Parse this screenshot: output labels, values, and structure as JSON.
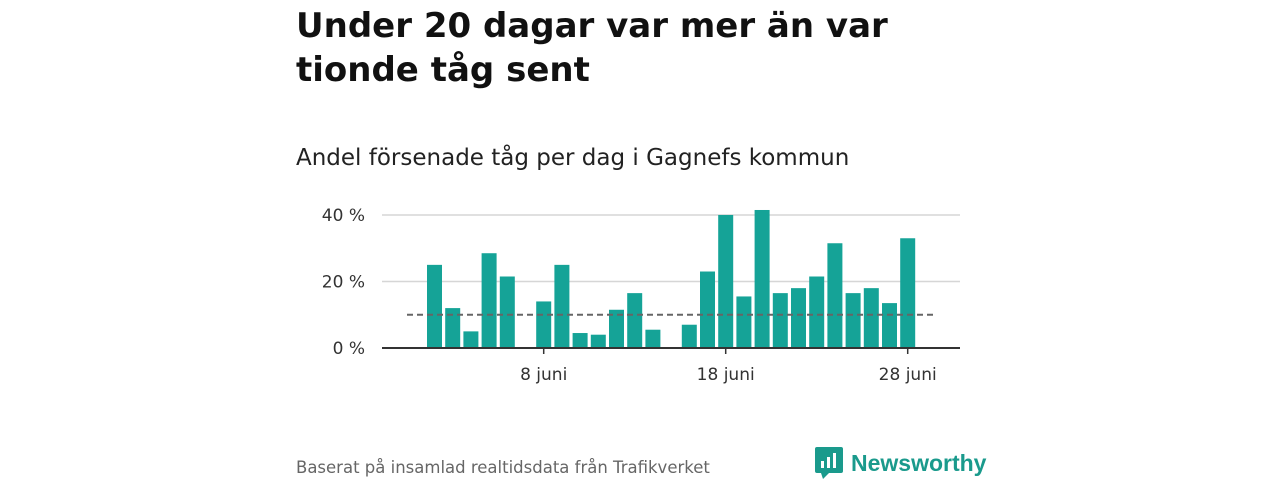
{
  "header": {
    "title": "Under 20 dagar var mer än var tionde tåg sent",
    "subtitle": "Andel försenade tåg per dag i Gagnefs kommun"
  },
  "footer": {
    "source": "Baserat på insamlad realtidsdata från Trafikverket",
    "brand": "Newsworthy"
  },
  "colors": {
    "bar": "#15a397",
    "reference_line": "#666666",
    "brand": "#1a9a8c"
  },
  "chart_data": {
    "type": "bar",
    "x": [
      "2 juni",
      "3 juni",
      "4 juni",
      "5 juni",
      "6 juni",
      "7 juni",
      "8 juni",
      "9 juni",
      "10 juni",
      "11 juni",
      "12 juni",
      "13 juni",
      "14 juni",
      "15 juni",
      "16 juni",
      "17 juni",
      "18 juni",
      "19 juni",
      "20 juni",
      "21 juni",
      "22 juni",
      "23 juni",
      "24 juni",
      "25 juni",
      "26 juni",
      "27 juni",
      "28 juni"
    ],
    "values": [
      25,
      12,
      5,
      28.5,
      21.5,
      null,
      14,
      25,
      4.5,
      4,
      11.5,
      16.5,
      5.5,
      null,
      7,
      23,
      40,
      15.5,
      41.5,
      16.5,
      18,
      21.5,
      31.5,
      16.5,
      18,
      13.5,
      33
    ],
    "unit": "%",
    "reference_line": 10,
    "yticks": [
      0,
      20,
      40
    ],
    "ytick_labels": [
      "0 %",
      "20 %",
      "40 %"
    ],
    "xticks": [
      "8 juni",
      "18 juni",
      "28 juni"
    ],
    "ylim": [
      0,
      43
    ],
    "grid": "horizontal"
  }
}
